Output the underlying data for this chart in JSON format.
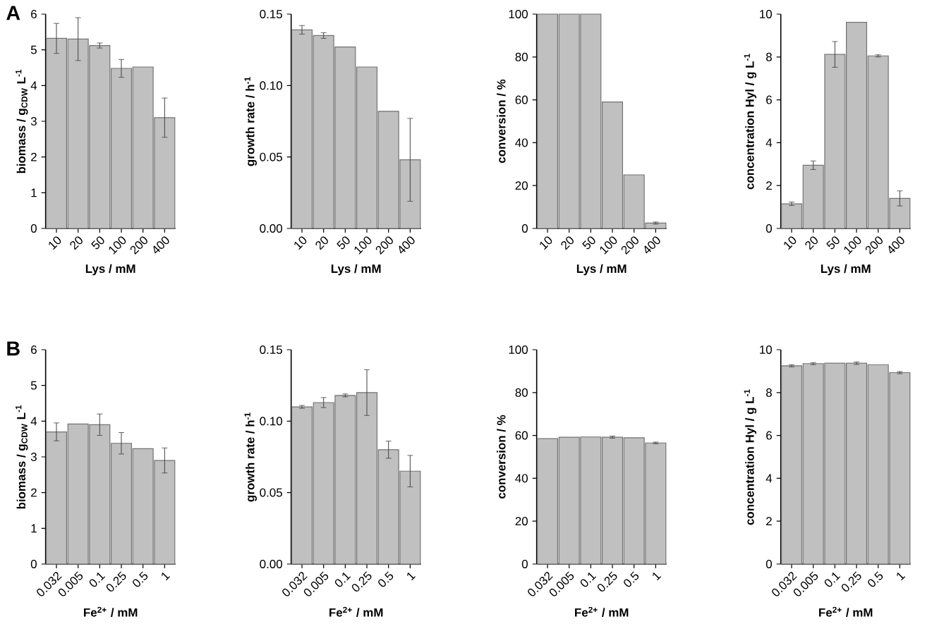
{
  "chart_data": [
    {
      "type": "bar",
      "annotations": [
        "A"
      ],
      "xlabel": "Lys / mM",
      "ylabel": "biomass / g$_{CDW}$ L$^{-1}$",
      "categories": [
        "10",
        "20",
        "50",
        "100",
        "200",
        "400"
      ],
      "values": [
        5.32,
        5.3,
        5.12,
        4.48,
        4.52,
        3.1
      ],
      "errors": [
        0.42,
        0.6,
        0.07,
        0.25,
        null,
        0.55
      ],
      "color": "#c0c0c0",
      "ylim": [
        0,
        6
      ],
      "yticks": [
        0,
        1,
        2,
        3,
        4,
        5,
        6
      ]
    },
    {
      "type": "bar",
      "xlabel": "Lys / mM",
      "ylabel": "growth rate / h$^{-1}$",
      "categories": [
        "10",
        "20",
        "50",
        "100",
        "200",
        "400"
      ],
      "values": [
        0.139,
        0.135,
        0.127,
        0.113,
        0.082,
        0.048
      ],
      "errors": [
        0.003,
        0.002,
        null,
        null,
        null,
        0.029
      ],
      "color": "#c0c0c0",
      "ylim": [
        0,
        0.15
      ],
      "yticks": [
        {
          "value": 0,
          "label": "0.00"
        },
        {
          "value": 0.05,
          "label": "0.05"
        },
        {
          "value": 0.1,
          "label": "0.10"
        },
        {
          "value": 0.15,
          "label": "0.15"
        }
      ]
    },
    {
      "type": "bar",
      "xlabel": "Lys / mM",
      "ylabel": "conversion / %",
      "categories": [
        "10",
        "20",
        "50",
        "100",
        "200",
        "400"
      ],
      "values": [
        100,
        100,
        100,
        59,
        25,
        2.5
      ],
      "errors": [
        null,
        null,
        null,
        null,
        null,
        0.5
      ],
      "color": "#c0c0c0",
      "ylim": [
        0,
        100
      ],
      "yticks": [
        0,
        20,
        40,
        60,
        80,
        100
      ]
    },
    {
      "type": "bar",
      "xlabel": "Lys / mM",
      "ylabel": "concentration Hyl / g L$^{-1}$",
      "categories": [
        "10",
        "20",
        "50",
        "100",
        "200",
        "400"
      ],
      "values": [
        1.15,
        2.95,
        8.12,
        9.62,
        8.05,
        1.4
      ],
      "errors": [
        0.08,
        0.2,
        0.6,
        null,
        0.05,
        0.35
      ],
      "color": "#c0c0c0",
      "ylim": [
        0,
        10
      ],
      "yticks": [
        0,
        2,
        4,
        6,
        8,
        10
      ]
    },
    {
      "type": "bar",
      "annotations": [
        "B"
      ],
      "xlabel": "Fe$^{2+}$ / mM",
      "ylabel": "biomass / g$_{CDW}$ L$^{-1}$",
      "categories": [
        "0.032",
        "0.005",
        "0.1",
        "0.25",
        "0.5",
        "1"
      ],
      "values": [
        3.7,
        3.92,
        3.9,
        3.38,
        3.23,
        2.9
      ],
      "errors": [
        0.25,
        null,
        0.3,
        0.3,
        null,
        0.35
      ],
      "color": "#c0c0c0",
      "ylim": [
        0,
        6
      ],
      "yticks": [
        0,
        1,
        2,
        3,
        4,
        5,
        6
      ]
    },
    {
      "type": "bar",
      "xlabel": "Fe$^{2+}$ / mM",
      "ylabel": "growth rate / h$^{-1}$",
      "categories": [
        "0.032",
        "0.005",
        "0.1",
        "0.25",
        "0.5",
        "1"
      ],
      "values": [
        0.11,
        0.113,
        0.118,
        0.12,
        0.08,
        0.065
      ],
      "errors": [
        0.001,
        0.0035,
        0.001,
        0.016,
        0.006,
        0.011
      ],
      "color": "#c0c0c0",
      "ylim": [
        0,
        0.15
      ],
      "yticks": [
        {
          "value": 0,
          "label": "0.00"
        },
        {
          "value": 0.05,
          "label": "0.05"
        },
        {
          "value": 0.1,
          "label": "0.10"
        },
        {
          "value": 0.15,
          "label": "0.15"
        }
      ]
    },
    {
      "type": "bar",
      "xlabel": "Fe$^{2+}$ / mM",
      "ylabel": "conversion / %",
      "categories": [
        "0.032",
        "0.005",
        "0.1",
        "0.25",
        "0.5",
        "1"
      ],
      "values": [
        58.5,
        59.2,
        59.3,
        59.2,
        58.9,
        56.5
      ],
      "errors": [
        null,
        null,
        null,
        0.5,
        null,
        0.4
      ],
      "color": "#c0c0c0",
      "ylim": [
        0,
        100
      ],
      "yticks": [
        0,
        20,
        40,
        60,
        80,
        100
      ]
    },
    {
      "type": "bar",
      "xlabel": "Fe$^{2+}$ / mM",
      "ylabel": "concentration Hyl / g L$^{-1}$",
      "categories": [
        "0.032",
        "0.005",
        "0.1",
        "0.25",
        "0.5",
        "1"
      ],
      "values": [
        9.25,
        9.35,
        9.37,
        9.37,
        9.3,
        8.93
      ],
      "errors": [
        0.05,
        0.05,
        null,
        0.06,
        null,
        0.05
      ],
      "color": "#c0c0c0",
      "ylim": [
        0,
        10
      ],
      "yticks": [
        0,
        2,
        4,
        6,
        8,
        10
      ]
    }
  ]
}
